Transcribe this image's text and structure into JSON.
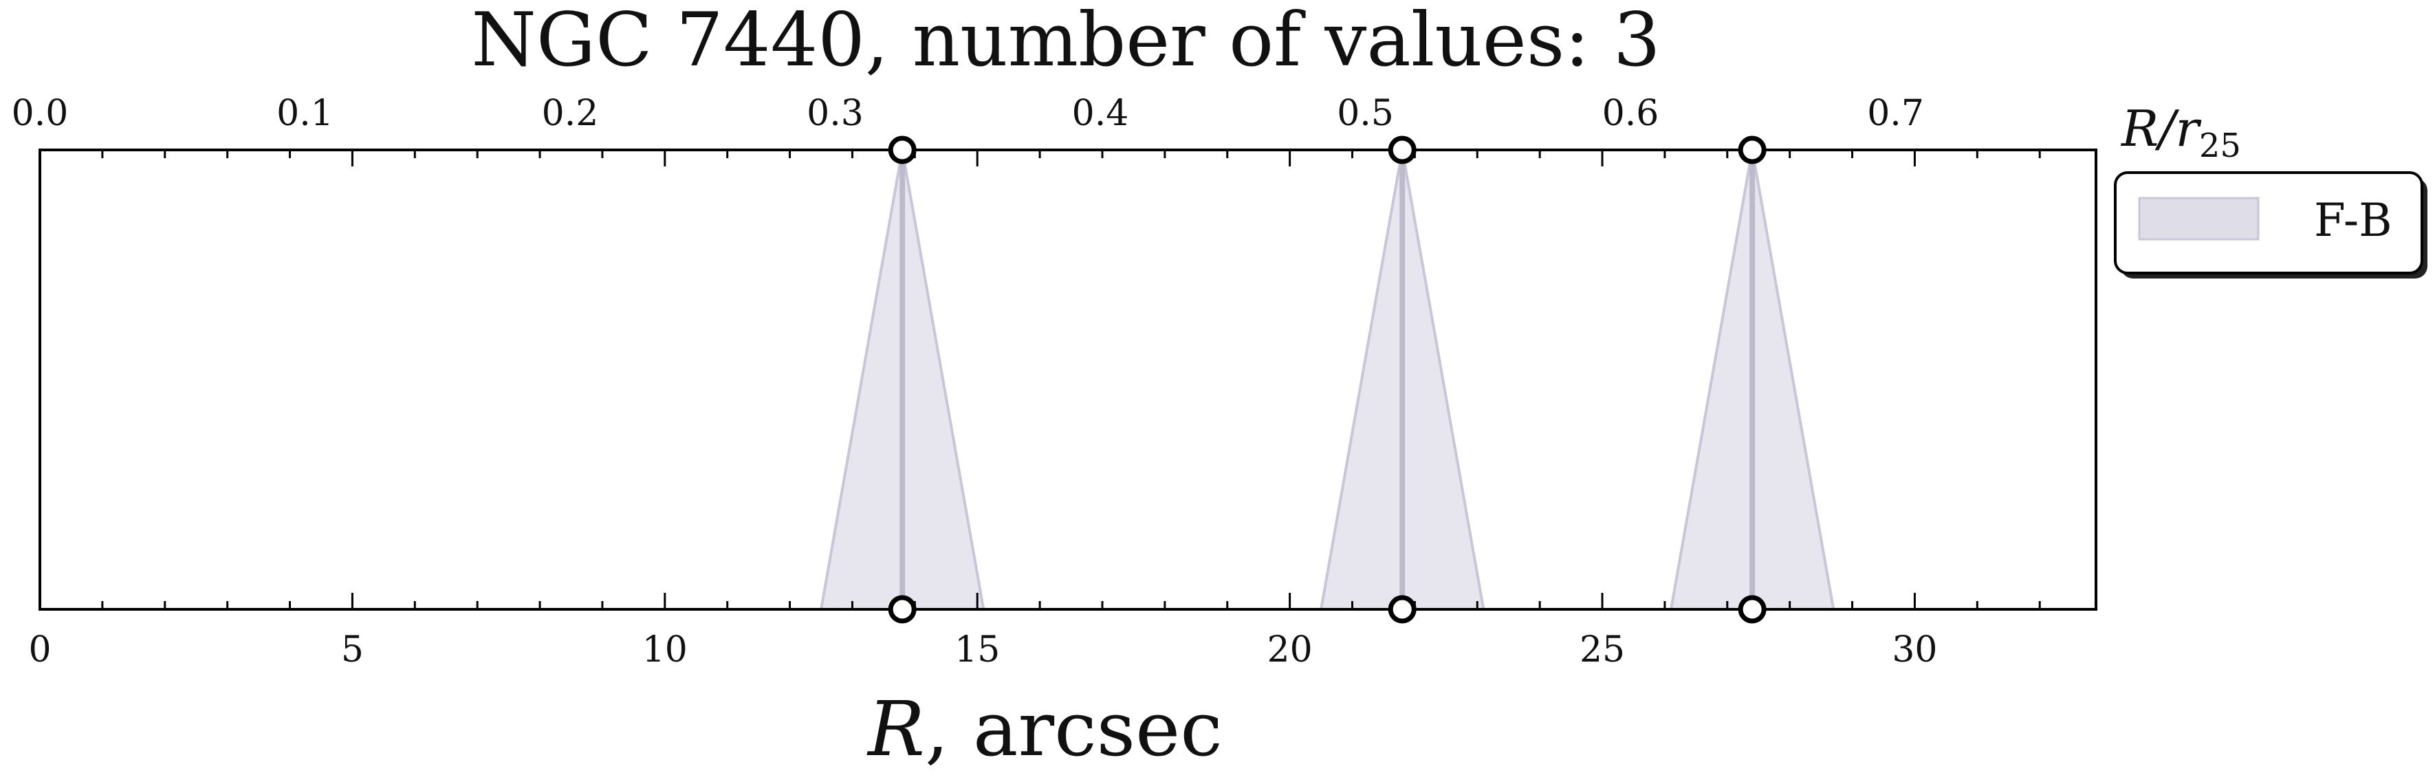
{
  "chart_data": {
    "type": "area",
    "title": "NGC 7440, number of values: 3",
    "xlabel_symbol": "R",
    "xlabel_unit": ", arcsec",
    "top_axis_label": "R/r",
    "top_axis_label_subscript": "25",
    "xlim": [
      0,
      32.9
    ],
    "xticks": [
      0,
      5,
      10,
      15,
      20,
      25,
      30
    ],
    "xtick_labels": [
      "0",
      "5",
      "10",
      "15",
      "20",
      "25",
      "30"
    ],
    "top_xlim": [
      0,
      0.7756
    ],
    "top_xticks": [
      0.0,
      0.1,
      0.2,
      0.3,
      0.4,
      0.5,
      0.6,
      0.7
    ],
    "top_xtick_labels": [
      "0.0",
      "0.1",
      "0.2",
      "0.3",
      "0.4",
      "0.5",
      "0.6",
      "0.7"
    ],
    "grid": false,
    "legend_position": "outside-right-top",
    "series": [
      {
        "name": "F-B",
        "color": "#c9c6d8",
        "x": [
          13.8,
          21.8,
          27.4
        ],
        "halfwidth": [
          1.3,
          1.3,
          1.3
        ]
      }
    ]
  }
}
